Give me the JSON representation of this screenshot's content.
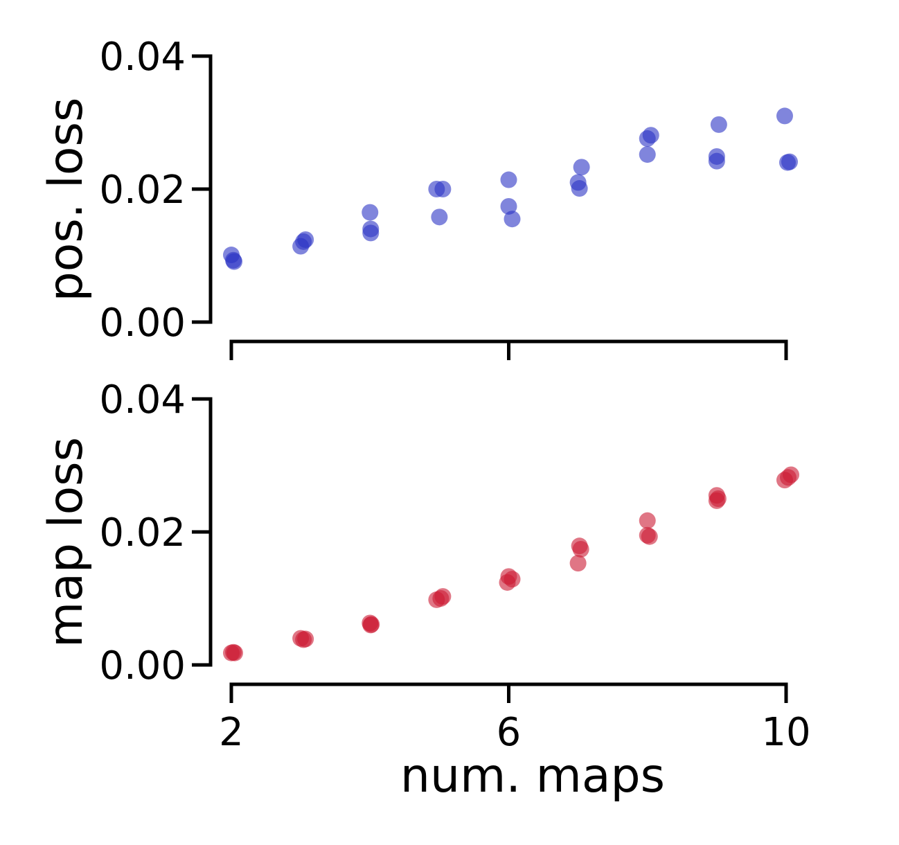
{
  "chart_data": [
    {
      "type": "scatter",
      "id": "pos",
      "ylabel": "pos. loss",
      "ylim": [
        0,
        0.04
      ],
      "yticks": [
        0.0,
        0.02,
        0.04
      ],
      "ytick_labels": [
        "0.00",
        "0.02",
        "0.04"
      ],
      "xlim": [
        2,
        10
      ],
      "xticks": [
        2,
        6,
        10
      ],
      "xtick_labels": [
        "",
        "",
        ""
      ],
      "color": "#2b33c4",
      "grid": false,
      "points": [
        {
          "x": 2,
          "y": 0.0101
        },
        {
          "x": 2.03,
          "y": 0.0093
        },
        {
          "x": 2.04,
          "y": 0.0091
        },
        {
          "x": 3,
          "y": 0.0114
        },
        {
          "x": 3.04,
          "y": 0.0121
        },
        {
          "x": 3.07,
          "y": 0.0124
        },
        {
          "x": 4,
          "y": 0.0165
        },
        {
          "x": 4.01,
          "y": 0.014
        },
        {
          "x": 4.01,
          "y": 0.0134
        },
        {
          "x": 4.96,
          "y": 0.02
        },
        {
          "x": 5.05,
          "y": 0.02
        },
        {
          "x": 5,
          "y": 0.0158
        },
        {
          "x": 6,
          "y": 0.0214
        },
        {
          "x": 6,
          "y": 0.0174
        },
        {
          "x": 6.05,
          "y": 0.0155
        },
        {
          "x": 7,
          "y": 0.021
        },
        {
          "x": 7.02,
          "y": 0.0201
        },
        {
          "x": 7.05,
          "y": 0.0233
        },
        {
          "x": 8,
          "y": 0.0276
        },
        {
          "x": 8.05,
          "y": 0.0281
        },
        {
          "x": 8,
          "y": 0.0252
        },
        {
          "x": 9,
          "y": 0.0249
        },
        {
          "x": 9,
          "y": 0.0242
        },
        {
          "x": 9.03,
          "y": 0.0297
        },
        {
          "x": 9.98,
          "y": 0.031
        },
        {
          "x": 10.02,
          "y": 0.024
        },
        {
          "x": 10.05,
          "y": 0.0241
        }
      ]
    },
    {
      "type": "scatter",
      "id": "map",
      "ylabel": "map loss",
      "xlabel": "num. maps",
      "ylim": [
        0,
        0.04
      ],
      "yticks": [
        0.0,
        0.02,
        0.04
      ],
      "ytick_labels": [
        "0.00",
        "0.02",
        "0.04"
      ],
      "xlim": [
        2,
        10
      ],
      "xticks": [
        2,
        6,
        10
      ],
      "xtick_labels": [
        "2",
        "6",
        "10"
      ],
      "color": "#cc1a33",
      "grid": false,
      "points": [
        {
          "x": 2,
          "y": 0.0018
        },
        {
          "x": 2.03,
          "y": 0.0019
        },
        {
          "x": 2.05,
          "y": 0.0018
        },
        {
          "x": 3,
          "y": 0.004
        },
        {
          "x": 3.04,
          "y": 0.0038
        },
        {
          "x": 3.07,
          "y": 0.0039
        },
        {
          "x": 4,
          "y": 0.0063
        },
        {
          "x": 4.01,
          "y": 0.006
        },
        {
          "x": 4.02,
          "y": 0.0061
        },
        {
          "x": 4.96,
          "y": 0.0098
        },
        {
          "x": 5.02,
          "y": 0.01
        },
        {
          "x": 5.05,
          "y": 0.0103
        },
        {
          "x": 5.98,
          "y": 0.0124
        },
        {
          "x": 6,
          "y": 0.0133
        },
        {
          "x": 6.05,
          "y": 0.0129
        },
        {
          "x": 7,
          "y": 0.0153
        },
        {
          "x": 7.02,
          "y": 0.0179
        },
        {
          "x": 7.04,
          "y": 0.0174
        },
        {
          "x": 8,
          "y": 0.0217
        },
        {
          "x": 8,
          "y": 0.0195
        },
        {
          "x": 8.03,
          "y": 0.0193
        },
        {
          "x": 9,
          "y": 0.0255
        },
        {
          "x": 9,
          "y": 0.0247
        },
        {
          "x": 9.02,
          "y": 0.025
        },
        {
          "x": 9.98,
          "y": 0.0278
        },
        {
          "x": 10.03,
          "y": 0.0282
        },
        {
          "x": 10.07,
          "y": 0.0286
        }
      ]
    }
  ]
}
